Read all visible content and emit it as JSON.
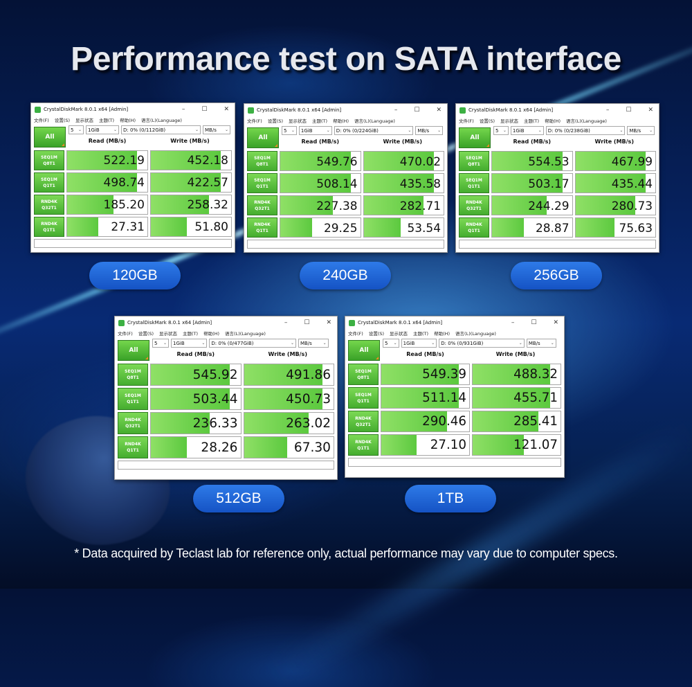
{
  "heading": "Performance test on SATA interface",
  "footnote": "* Data acquired by Teclast lab for reference only, actual performance may vary due to computer specs.",
  "colors": {
    "bar_green": "#5cc93f",
    "pill_blue": "#1f63d6",
    "background": "#06215c"
  },
  "common": {
    "title": "CrystalDiskMark 8.0.1 x64 [Admin]",
    "menu": [
      "文件(F)",
      "设置(S)",
      "显示状态",
      "主题(T)",
      "帮助(H)",
      "语言(L)(Language)"
    ],
    "all_label": "All",
    "count": "5",
    "size": "1GiB",
    "unit": "MB/s",
    "read_header": "Read (MB/s)",
    "write_header": "Write (MB/s)",
    "minimize": "–",
    "maximize": "☐",
    "close": "✕",
    "tests": [
      {
        "name": "SEQ1M",
        "sub": "Q8T1"
      },
      {
        "name": "SEQ1M",
        "sub": "Q1T1"
      },
      {
        "name": "RND4K",
        "sub": "Q32T1"
      },
      {
        "name": "RND4K",
        "sub": "Q1T1"
      }
    ]
  },
  "panels": [
    {
      "capacity": "120GB",
      "drive": "D: 0% (0/112GiB)",
      "results": [
        {
          "read": "522.19",
          "write": "452.18",
          "read_frac": 0.87,
          "write_frac": 0.87
        },
        {
          "read": "498.74",
          "write": "422.57",
          "read_frac": 0.87,
          "write_frac": 0.87
        },
        {
          "read": "185.20",
          "write": "258.32",
          "read_frac": 0.58,
          "write_frac": 0.72
        },
        {
          "read": "27.31",
          "write": "51.80",
          "read_frac": 0.39,
          "write_frac": 0.45
        }
      ]
    },
    {
      "capacity": "240GB",
      "drive": "D: 0% (0/224GiB)",
      "results": [
        {
          "read": "549.76",
          "write": "470.02",
          "read_frac": 0.88,
          "write_frac": 0.88
        },
        {
          "read": "508.14",
          "write": "435.58",
          "read_frac": 0.88,
          "write_frac": 0.88
        },
        {
          "read": "227.38",
          "write": "282.71",
          "read_frac": 0.66,
          "write_frac": 0.75
        },
        {
          "read": "29.25",
          "write": "53.54",
          "read_frac": 0.4,
          "write_frac": 0.46
        }
      ]
    },
    {
      "capacity": "256GB",
      "drive": "D: 0% (0/238GiB)",
      "results": [
        {
          "read": "554.53",
          "write": "467.99",
          "read_frac": 0.88,
          "write_frac": 0.88
        },
        {
          "read": "503.17",
          "write": "435.44",
          "read_frac": 0.88,
          "write_frac": 0.88
        },
        {
          "read": "244.29",
          "write": "280.73",
          "read_frac": 0.68,
          "write_frac": 0.75
        },
        {
          "read": "28.87",
          "write": "75.63",
          "read_frac": 0.4,
          "write_frac": 0.49
        }
      ]
    },
    {
      "capacity": "512GB",
      "drive": "D: 0% (0/477GiB)",
      "results": [
        {
          "read": "545.92",
          "write": "491.86",
          "read_frac": 0.88,
          "write_frac": 0.88
        },
        {
          "read": "503.44",
          "write": "450.73",
          "read_frac": 0.88,
          "write_frac": 0.88
        },
        {
          "read": "236.33",
          "write": "263.02",
          "read_frac": 0.66,
          "write_frac": 0.72
        },
        {
          "read": "28.26",
          "write": "67.30",
          "read_frac": 0.4,
          "write_frac": 0.48
        }
      ]
    },
    {
      "capacity": "1TB",
      "drive": "D: 0% (0/931GiB)",
      "results": [
        {
          "read": "549.39",
          "write": "488.32",
          "read_frac": 0.88,
          "write_frac": 0.88
        },
        {
          "read": "511.14",
          "write": "455.71",
          "read_frac": 0.88,
          "write_frac": 0.88
        },
        {
          "read": "290.46",
          "write": "285.41",
          "read_frac": 0.75,
          "write_frac": 0.75
        },
        {
          "read": "27.10",
          "write": "121.07",
          "read_frac": 0.4,
          "write_frac": 0.58
        }
      ]
    }
  ]
}
